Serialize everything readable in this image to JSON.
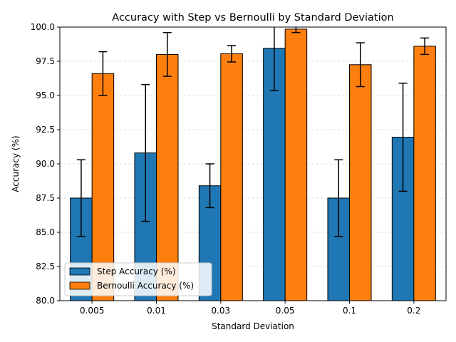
{
  "chart_data": {
    "type": "bar",
    "title": "Accuracy with Step vs Bernoulli by Standard Deviation",
    "xlabel": "Standard Deviation",
    "ylabel": "Accuracy (%)",
    "ylim": [
      80.0,
      100.0
    ],
    "yticks": [
      "80.0",
      "82.5",
      "85.0",
      "87.5",
      "90.0",
      "92.5",
      "95.0",
      "97.5",
      "100.0"
    ],
    "categories": [
      "0.005",
      "0.01",
      "0.03",
      "0.05",
      "0.1",
      "0.2"
    ],
    "grid": "y",
    "legend_position": "lower-left",
    "series": [
      {
        "name": "Step Accuracy (%)",
        "color": "#1f77b4",
        "values": [
          87.5,
          90.8,
          88.4,
          98.45,
          87.5,
          91.95
        ],
        "errors": [
          2.8,
          5.0,
          1.6,
          3.1,
          2.8,
          3.95
        ]
      },
      {
        "name": "Bernoulli Accuracy (%)",
        "color": "#ff7f0e",
        "values": [
          96.6,
          98.0,
          98.05,
          99.85,
          97.25,
          98.6
        ],
        "errors": [
          1.6,
          1.6,
          0.6,
          0.25,
          1.6,
          0.6
        ]
      }
    ]
  }
}
